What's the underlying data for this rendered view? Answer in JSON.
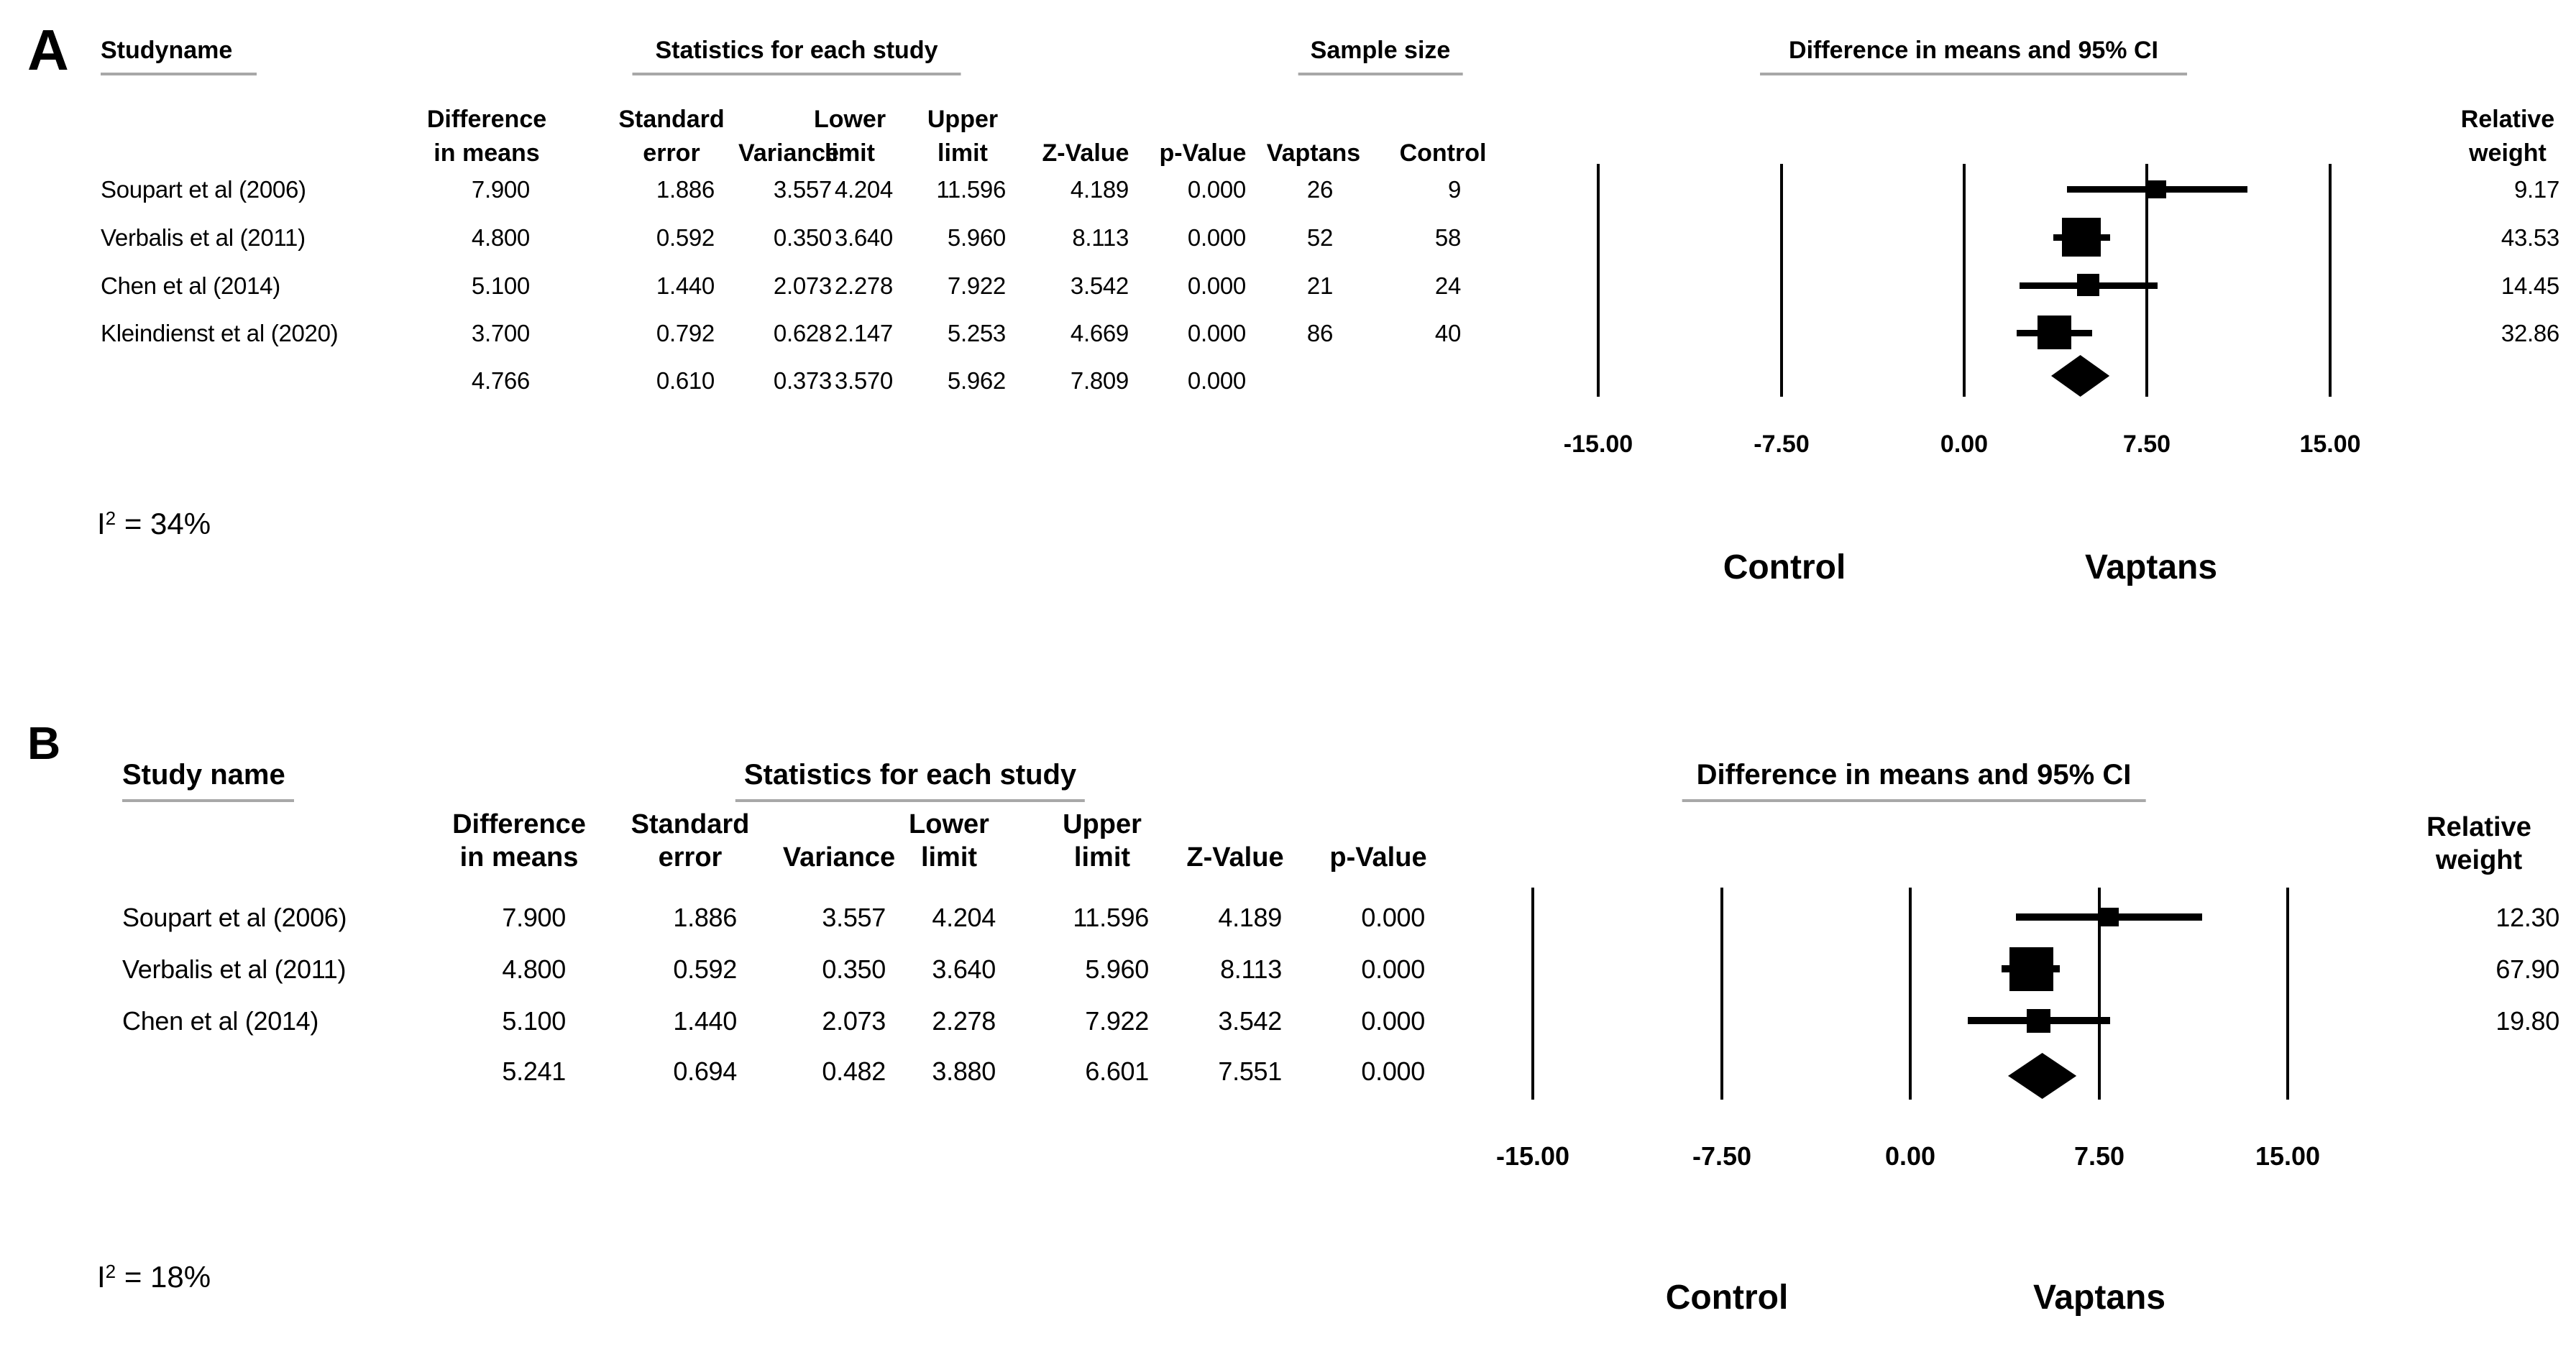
{
  "figure": {
    "panels": [
      {
        "panel_label": "A",
        "study_header": "Studyname",
        "stats_header": "Statistics for each study",
        "sample_header": "Sample size",
        "ci_header": "Difference in means and 95% CI",
        "weight_header": "Relative\nweight",
        "col_headers": [
          "Difference\nin means",
          "Standard\nerror",
          "Variance",
          "Lower\nlimit",
          "Upper\nlimit",
          "Z-Value",
          "p-Value",
          "Vaptans",
          "Control"
        ],
        "rows": [
          {
            "study": "Soupart et al (2006)",
            "cells": [
              "7.900",
              "1.886",
              "3.557",
              "4.204",
              "11.596",
              "4.189",
              "0.000",
              "26",
              "9"
            ],
            "weight": "9.17"
          },
          {
            "study": "Verbalis et al (2011)",
            "cells": [
              "4.800",
              "0.592",
              "0.350",
              "3.640",
              "5.960",
              "8.113",
              "0.000",
              "52",
              "58"
            ],
            "weight": "43.53"
          },
          {
            "study": "Chen et al (2014)",
            "cells": [
              "5.100",
              "1.440",
              "2.073",
              "2.278",
              "7.922",
              "3.542",
              "0.000",
              "21",
              "24"
            ],
            "weight": "14.45"
          },
          {
            "study": "Kleindienst et al (2020)",
            "cells": [
              "3.700",
              "0.792",
              "0.628",
              "2.147",
              "5.253",
              "4.669",
              "0.000",
              "86",
              "40"
            ],
            "weight": "32.86"
          }
        ],
        "summary_cells": [
          "4.766",
          "0.610",
          "0.373",
          "3.570",
          "5.962",
          "7.809",
          "0.000"
        ],
        "axis_ticks": [
          "-15.00",
          "-7.50",
          "0.00",
          "7.50",
          "15.00"
        ],
        "group_labels": {
          "left": "Control",
          "right": "Vaptans"
        },
        "heterogeneity": {
          "base": "I",
          "sup": "2",
          "rest": " = 34%"
        }
      },
      {
        "panel_label": "B",
        "study_header": "Study name",
        "stats_header": "Statistics for each study",
        "ci_header": "Difference in means and 95% CI",
        "weight_header": "Relative\nweight",
        "col_headers": [
          "Difference\nin means",
          "Standard\nerror",
          "Variance",
          "Lower\nlimit",
          "Upper\nlimit",
          "Z-Value",
          "p-Value"
        ],
        "rows": [
          {
            "study": "Soupart et al (2006)",
            "cells": [
              "7.900",
              "1.886",
              "3.557",
              "4.204",
              "11.596",
              "4.189",
              "0.000"
            ],
            "weight": "12.30"
          },
          {
            "study": "Verbalis et al (2011)",
            "cells": [
              "4.800",
              "0.592",
              "0.350",
              "3.640",
              "5.960",
              "8.113",
              "0.000"
            ],
            "weight": "67.90"
          },
          {
            "study": "Chen et al (2014)",
            "cells": [
              "5.100",
              "1.440",
              "2.073",
              "2.278",
              "7.922",
              "3.542",
              "0.000"
            ],
            "weight": "19.80"
          }
        ],
        "summary_cells": [
          "5.241",
          "0.694",
          "0.482",
          "3.880",
          "6.601",
          "7.551",
          "0.000"
        ],
        "axis_ticks": [
          "-15.00",
          "-7.50",
          "0.00",
          "7.50",
          "15.00"
        ],
        "group_labels": {
          "left": "Control",
          "right": "Vaptans"
        },
        "heterogeneity": {
          "base": "I",
          "sup": "2",
          "rest": " = 18%"
        }
      }
    ]
  },
  "chart_data": [
    {
      "type": "forest",
      "panel": "A",
      "title": "Difference in means and 95% CI",
      "xlim": [
        -15,
        15
      ],
      "x_ticks": [
        -15,
        -7.5,
        0,
        7.5,
        15
      ],
      "group_label_left": "Control",
      "group_label_right": "Vaptans",
      "i_squared_percent": 34,
      "studies": [
        {
          "name": "Soupart et al (2006)",
          "mean": 7.9,
          "lower": 4.204,
          "upper": 11.596,
          "weight": 9.17
        },
        {
          "name": "Verbalis et al (2011)",
          "mean": 4.8,
          "lower": 3.64,
          "upper": 5.96,
          "weight": 43.53
        },
        {
          "name": "Chen et al (2014)",
          "mean": 5.1,
          "lower": 2.278,
          "upper": 7.922,
          "weight": 14.45
        },
        {
          "name": "Kleindienst et al (2020)",
          "mean": 3.7,
          "lower": 2.147,
          "upper": 5.253,
          "weight": 32.86
        }
      ],
      "summary": {
        "mean": 4.766,
        "lower": 3.57,
        "upper": 5.962
      }
    },
    {
      "type": "forest",
      "panel": "B",
      "title": "Difference in means and 95% CI",
      "xlim": [
        -15,
        15
      ],
      "x_ticks": [
        -15,
        -7.5,
        0,
        7.5,
        15
      ],
      "group_label_left": "Control",
      "group_label_right": "Vaptans",
      "i_squared_percent": 18,
      "studies": [
        {
          "name": "Soupart et al (2006)",
          "mean": 7.9,
          "lower": 4.204,
          "upper": 11.596,
          "weight": 12.3
        },
        {
          "name": "Verbalis et al (2011)",
          "mean": 4.8,
          "lower": 3.64,
          "upper": 5.96,
          "weight": 67.9
        },
        {
          "name": "Chen et al (2014)",
          "mean": 5.1,
          "lower": 2.278,
          "upper": 7.922,
          "weight": 19.8
        }
      ],
      "summary": {
        "mean": 5.241,
        "lower": 3.88,
        "upper": 6.601
      }
    }
  ]
}
